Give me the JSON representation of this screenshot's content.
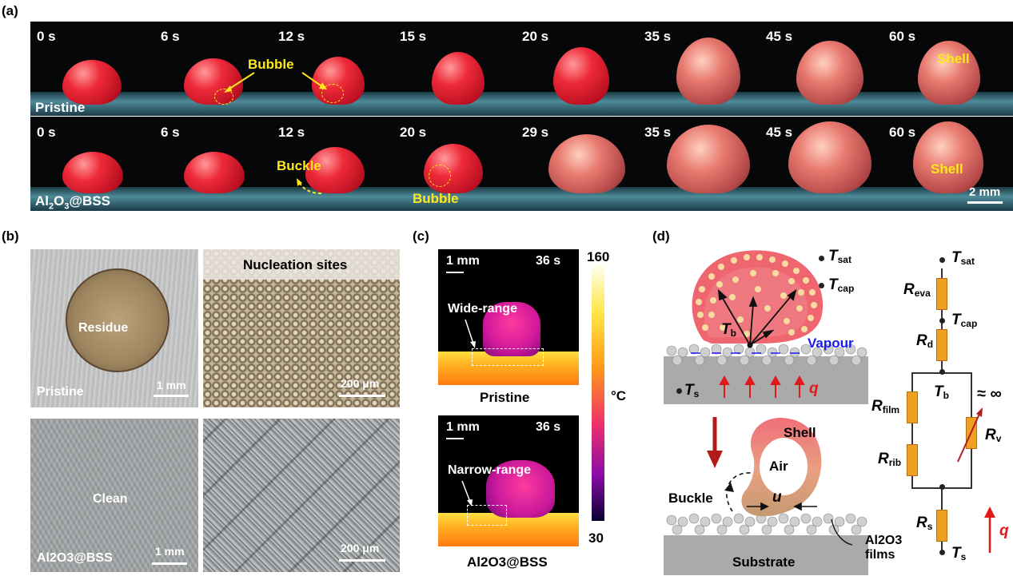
{
  "panel_labels": {
    "a": "(a)",
    "b": "(b)",
    "c": "(c)",
    "d": "(d)"
  },
  "panel_a": {
    "row1": {
      "surface_label": "Pristine",
      "times": [
        "0 s",
        "6 s",
        "12 s",
        "15 s",
        "20 s",
        "35 s",
        "45 s",
        "60 s"
      ],
      "annotations": {
        "bubble": "Bubble",
        "shell": "Shell"
      }
    },
    "row2": {
      "surface_label_main": "Al",
      "surface_label_sub1": "2",
      "surface_label_mid": "O",
      "surface_label_sub2": "3",
      "surface_label_tail": "@BSS",
      "times": [
        "0 s",
        "6 s",
        "12 s",
        "20 s",
        "29 s",
        "35 s",
        "45 s",
        "60 s"
      ],
      "annotations": {
        "buckle": "Buckle",
        "bubble": "Bubble",
        "shell": "Shell"
      },
      "scale_bar": "2 mm"
    }
  },
  "panel_b": {
    "pristine_overview": {
      "center_label": "Residue",
      "corner_label": "Pristine",
      "scale_bar": "1 mm"
    },
    "pristine_zoom": {
      "title": "Nucleation sites",
      "scale_bar": "200 μm"
    },
    "coated_overview": {
      "center_label": "Clean",
      "corner_label": "Al2O3@BSS",
      "scale_bar": "1 mm"
    },
    "coated_zoom": {
      "scale_bar": "200 μm"
    }
  },
  "panel_c": {
    "top": {
      "scale_bar": "1 mm",
      "time": "36 s",
      "annotation": "Wide-range",
      "caption": "Pristine"
    },
    "bottom": {
      "scale_bar": "1 mm",
      "time": "36 s",
      "annotation": "Narrow-range",
      "caption": "Al2O3@BSS"
    },
    "colorbar": {
      "max": "160",
      "min": "30",
      "unit": "°C"
    }
  },
  "panel_d": {
    "top_schematic": {
      "T_sat": "T",
      "T_sat_sub": "sat",
      "T_cap": "T",
      "T_cap_sub": "cap",
      "T_b": "T",
      "T_b_sub": "b",
      "T_s": "T",
      "T_s_sub": "s",
      "vapour": "Vapour",
      "heat_flux": "q"
    },
    "bottom_schematic": {
      "shell": "Shell",
      "air": "Air",
      "buckle": "Buckle",
      "u": "u",
      "substrate": "Substrate",
      "films_line1": "Al2O3",
      "films_line2": "films"
    },
    "circuit": {
      "T_sat": "T",
      "T_sat_sub": "sat",
      "R_eva": "R",
      "R_eva_sub": "eva",
      "T_cap": "T",
      "T_cap_sub": "cap",
      "R_d": "R",
      "R_d_sub": "d",
      "T_b": "T",
      "T_b_sub": "b",
      "R_film": "R",
      "R_film_sub": "film",
      "R_rib": "R",
      "R_rib_sub": "rib",
      "R_v": "R",
      "R_v_sub": "v",
      "approx_inf": "≈ ∞",
      "R_s": "R",
      "R_s_sub": "s",
      "T_s": "T",
      "T_s_sub": "s",
      "q": "q"
    }
  },
  "colors": {
    "yellow_annotation": "#ffe81a",
    "droplet_red": "#ee2a3a",
    "resistor_orange": "#f0a020",
    "vapour_blue": "#1a1aee",
    "heat_red": "#e01818"
  }
}
